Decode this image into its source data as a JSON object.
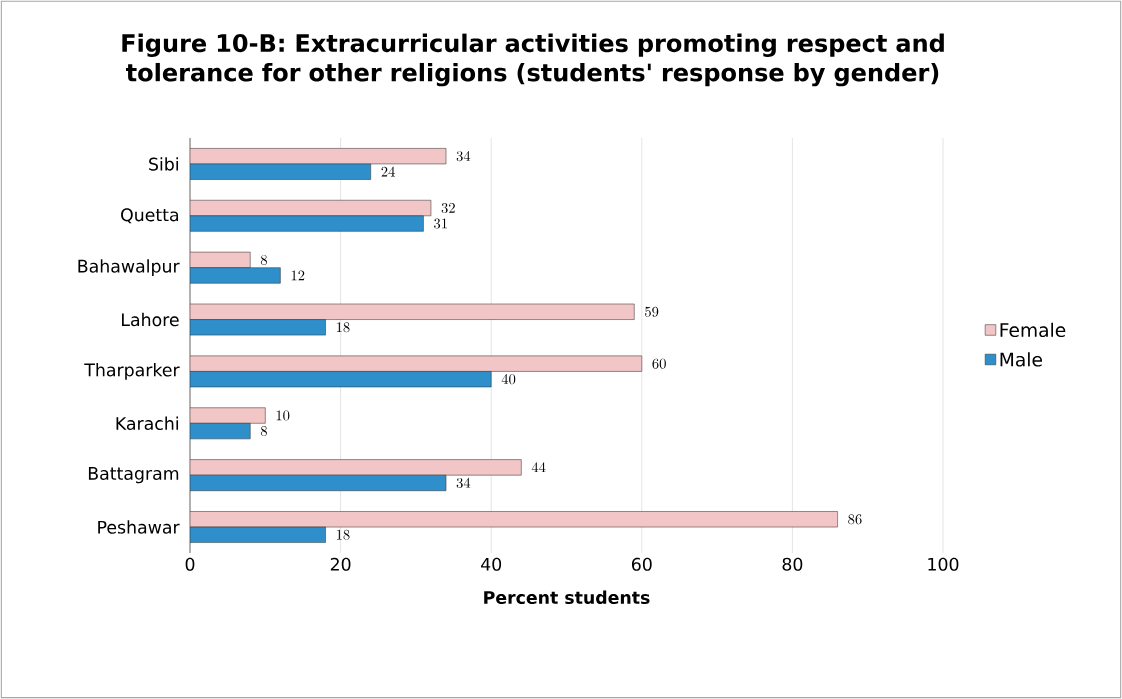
{
  "chart_data": {
    "type": "bar",
    "orientation": "horizontal",
    "title": "Figure 10-B: Extracurricular activities promoting respect and tolerance for other religions (students' response by gender)",
    "xlabel": "Percent students",
    "categories": [
      "Sibi",
      "Quetta",
      "Bahawalpur",
      "Lahore",
      "Tharparker",
      "Karachi",
      "Battagram",
      "Peshawar"
    ],
    "series": [
      {
        "name": "Female",
        "color": "#f2c6c6",
        "values": [
          34,
          32,
          8,
          59,
          60,
          10,
          44,
          86
        ]
      },
      {
        "name": "Male",
        "color": "#2e8fcb",
        "values": [
          24,
          31,
          12,
          18,
          40,
          8,
          34,
          18
        ]
      }
    ],
    "xlim": [
      0,
      100
    ],
    "xticks": [
      0,
      20,
      40,
      60,
      80,
      100
    ],
    "grid": "x",
    "legend": "right",
    "data_labels": true
  }
}
